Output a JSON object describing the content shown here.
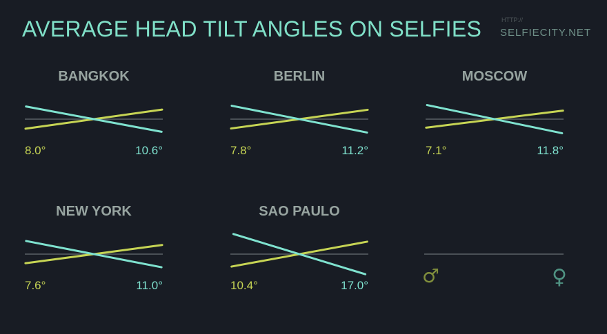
{
  "header": {
    "title": "AVERAGE HEAD TILT ANGLES ON SELFIES",
    "site_prefix": "HTTP://",
    "site": "SELFIECITY.NET"
  },
  "colors": {
    "male": "#c6d454",
    "female": "#7fe2cf",
    "baseline": "#5b6166",
    "male_symbol": "#7f8d3c",
    "female_symbol": "#4f9282"
  },
  "legend": {
    "male_icon": "male-symbol-icon",
    "female_icon": "female-symbol-icon",
    "male_symbol": "♂",
    "female_symbol": "♀"
  },
  "chart_data": {
    "type": "line",
    "unit": "°",
    "series": [
      {
        "key": "male",
        "values": [
          8.0,
          7.8,
          7.1,
          7.6,
          10.4
        ]
      },
      {
        "key": "female",
        "values": [
          10.6,
          11.2,
          11.8,
          11.0,
          17.0
        ]
      }
    ],
    "categories": [
      "BANGKOK",
      "BERLIN",
      "MOSCOW",
      "NEW YORK",
      "SAO PAULO"
    ],
    "labels": {
      "male": [
        "8.0°",
        "7.8°",
        "7.1°",
        "7.6°",
        "10.4°"
      ],
      "female": [
        "10.6°",
        "11.2°",
        "11.8°",
        "11.0°",
        "17.0°"
      ]
    }
  }
}
